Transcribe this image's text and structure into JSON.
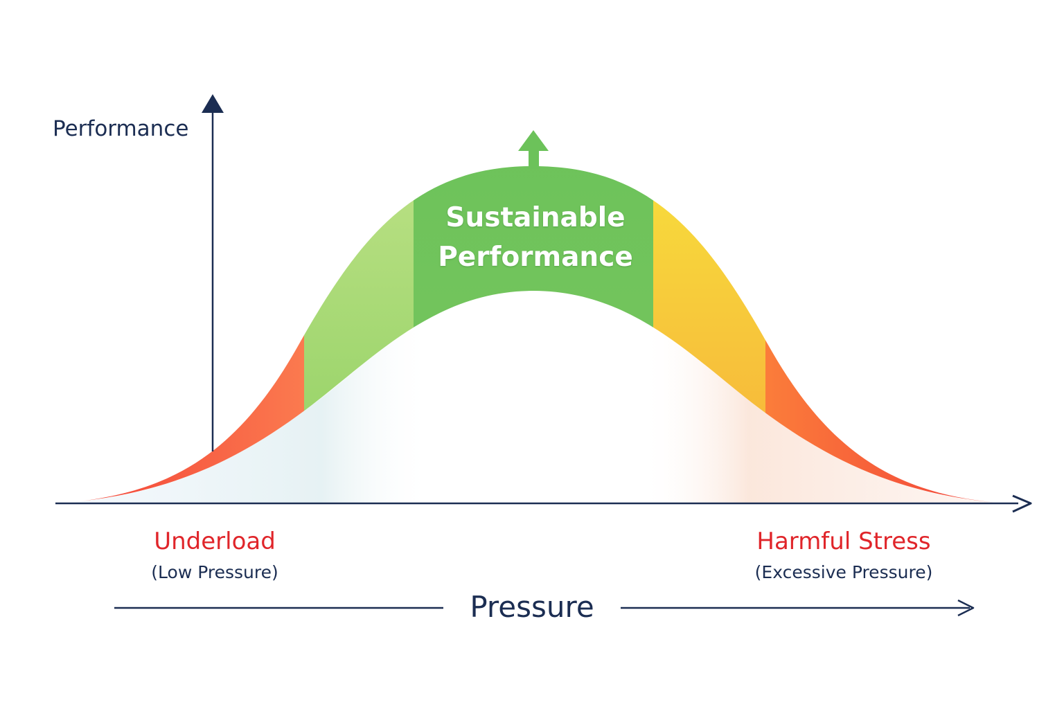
{
  "diagram": {
    "y_axis_label": "Performance",
    "x_axis_label": "Pressure",
    "center_zone": {
      "line1": "Sustainable",
      "line2": "Performance",
      "arrow_icon": "up-arrow-icon"
    },
    "left_zone": {
      "title": "Underload",
      "subtitle": "(Low Pressure)"
    },
    "right_zone": {
      "title": "Harmful Stress",
      "subtitle": "(Excessive Pressure)"
    },
    "colors": {
      "axis": "#1b2d52",
      "underload_red": "#f54a3a",
      "light_green": "#b7df7c",
      "sustainable_green": "#6fc25a",
      "yellow": "#f6e03a",
      "orange": "#f8b23c",
      "harmful_red": "#f0423a",
      "warning_text": "#e0252a"
    },
    "zones": [
      "underload",
      "rising",
      "sustainable",
      "declining",
      "harmful"
    ]
  }
}
